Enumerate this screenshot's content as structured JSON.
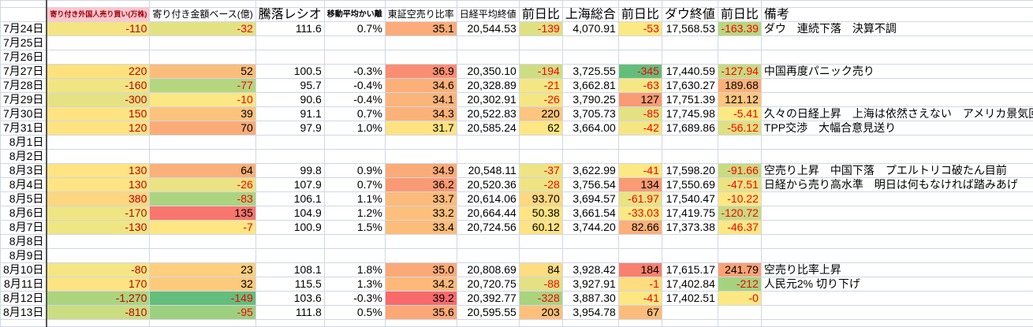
{
  "headers": [
    "",
    "寄り付き外国人売り買い(万株)",
    "寄り付き金額ベース(億)",
    "騰落レシオ",
    "移動平均かい離",
    "東証空売り比率",
    "日経平均終値",
    "前日比",
    "上海総合",
    "前日比",
    "ダウ終値",
    "前日比",
    "備考"
  ],
  "colors": {
    "negative_text": "#ff0000",
    "foreign_flow_text": "#c00000",
    "header_highlight": "#ffc7ce",
    "gridline": "#d0d7e5"
  },
  "rows": [
    {
      "date": "7月24日",
      "values": [
        "-110",
        "-32",
        "111.6",
        "0.7%",
        "35.1",
        "20,544.53",
        "-139",
        "4,070.91",
        "-53",
        "17,568.53",
        "-163.39"
      ],
      "fills": [
        "#f4e484",
        "#e3e283",
        "",
        "",
        "#fbac78",
        "",
        "#dfe082",
        "",
        "#fbe983",
        "",
        "#b8d77f"
      ],
      "remark": "ダウ　連続下落　決算不調"
    },
    {
      "date": "7月25日",
      "values": [
        "",
        "",
        "",
        "",
        "",
        "",
        "",
        "",
        "",
        "",
        ""
      ],
      "fills": [],
      "remark": ""
    },
    {
      "date": "7月26日",
      "values": [
        "",
        "",
        "",
        "",
        "",
        "",
        "",
        "",
        "",
        "",
        ""
      ],
      "fills": [],
      "remark": ""
    },
    {
      "date": "7月27日",
      "values": [
        "220",
        "52",
        "100.5",
        "-0.3%",
        "36.9",
        "20,350.10",
        "-194",
        "3,725.55",
        "-345",
        "17,440.59",
        "-127.94"
      ],
      "fills": [
        "#fee17f",
        "#fcbc7b",
        "",
        "",
        "#f98e72",
        "",
        "#cfdd82",
        "",
        "#63be7b",
        "",
        "#c6da81"
      ],
      "remark": "中国再度パニック売り"
    },
    {
      "date": "7月28日",
      "values": [
        "-160",
        "-77",
        "95.7",
        "-0.4%",
        "34.6",
        "20,328.89",
        "-21",
        "3,662.81",
        "-63",
        "17,630.27",
        "189.68"
      ],
      "fills": [
        "#f1e583",
        "#b4d680",
        "",
        "",
        "#fbb079",
        "",
        "#f4e684",
        "",
        "#f5e784",
        "",
        "#fbb079"
      ],
      "remark": ""
    },
    {
      "date": "7月29日",
      "values": [
        "-300",
        "-10",
        "90.6",
        "-0.4%",
        "34.1",
        "20,302.91",
        "-26",
        "3,790.25",
        "127",
        "17,751.39",
        "121.12"
      ],
      "fills": [
        "#e5e283",
        "#fbe883",
        "",
        "",
        "#fbb479",
        "",
        "#f3e683",
        "",
        "#f99b74",
        "",
        "#fdc57d"
      ],
      "remark": ""
    },
    {
      "date": "7月30日",
      "values": [
        "150",
        "39",
        "91.1",
        "0.7%",
        "34.3",
        "20,522.83",
        "220",
        "3,705.73",
        "-85",
        "17,745.98",
        "-5.41"
      ],
      "fills": [
        "#fee382",
        "#fcc37c",
        "",
        "",
        "#fbb279",
        "",
        "#fdc57d",
        "",
        "#e3e182",
        "",
        "#fbe983"
      ],
      "remark": "久々の日経上昇　上海は依然さえない　アメリカ景気回復の"
    },
    {
      "date": "7月31日",
      "values": [
        "120",
        "70",
        "97.9",
        "1.0%",
        "31.7",
        "20,585.24",
        "62",
        "3,664.00",
        "-42",
        "17,689.86",
        "-56.12"
      ],
      "fills": [
        "#fee382",
        "#fbab78",
        "",
        "",
        "#fee382",
        "",
        "#fde782",
        "",
        "#f5e683",
        "",
        "#dfe082"
      ],
      "remark": "TPP交渉　大幅合意見送り"
    },
    {
      "date": "8月1日",
      "values": [
        "",
        "",
        "",
        "",
        "",
        "",
        "",
        "",
        "",
        "",
        ""
      ],
      "fills": [],
      "remark": ""
    },
    {
      "date": "8月2日",
      "values": [
        "",
        "",
        "",
        "",
        "",
        "",
        "",
        "",
        "",
        "",
        ""
      ],
      "fills": [],
      "remark": ""
    },
    {
      "date": "8月3日",
      "values": [
        "130",
        "64",
        "99.8",
        "0.9%",
        "34.9",
        "20,548.11",
        "-37",
        "3,622.99",
        "-41",
        "17,598.20",
        "-91.66"
      ],
      "fills": [
        "#fee483",
        "#fbb079",
        "",
        "",
        "#fbab78",
        "",
        "#eee483",
        "",
        "#fbe983",
        "",
        "#c9db81"
      ],
      "remark": "空売り上昇　中国下落　プエルトリコ破たん目前"
    },
    {
      "date": "8月4日",
      "values": [
        "130",
        "-26",
        "107.9",
        "0.7%",
        "36.2",
        "20,520.36",
        "-28",
        "3,756.54",
        "134",
        "17,550.69",
        "-47.51"
      ],
      "fills": [
        "#fee483",
        "#ebe383",
        "",
        "",
        "#fa9a74",
        "",
        "#eee483",
        "",
        "#f99b74",
        "",
        "#e9e382"
      ],
      "remark": "日経から売り高水準　明日は何もなければ踏みあげ"
    },
    {
      "date": "8月5日",
      "values": [
        "380",
        "-83",
        "106.1",
        "1.1%",
        "33.7",
        "20,614.06",
        "93.70",
        "3,694.57",
        "-61.97",
        "17,540.47",
        "-10.22"
      ],
      "fills": [
        "#fdd680",
        "#acd47f",
        "",
        "",
        "#fcbb7b",
        "",
        "#fed880",
        "",
        "#eae382",
        "",
        "#fbe883"
      ],
      "remark": ""
    },
    {
      "date": "8月6日",
      "values": [
        "-170",
        "135",
        "104.9",
        "1.2%",
        "33.2",
        "20,664.44",
        "50.38",
        "3,661.54",
        "-33.03",
        "17,419.75",
        "-120.72"
      ],
      "fills": [
        "#efe583",
        "#f8766d",
        "",
        "",
        "#fcc07c",
        "",
        "#fee582",
        "",
        "#fbe983",
        "",
        "#c8db81"
      ],
      "remark": ""
    },
    {
      "date": "8月7日",
      "values": [
        "-130",
        "-7",
        "100.9",
        "1.5%",
        "33.4",
        "20,724.56",
        "60.12",
        "3,744.20",
        "82.66",
        "17,373.38",
        "-46.37"
      ],
      "fills": [
        "#f0e583",
        "#fee683",
        "",
        "",
        "#fcbd7b",
        "",
        "#fee382",
        "",
        "#fbb079",
        "",
        "#fbe883"
      ],
      "remark": ""
    },
    {
      "date": "8月8日",
      "values": [
        "",
        "",
        "",
        "",
        "",
        "",
        "",
        "",
        "",
        "",
        ""
      ],
      "fills": [],
      "remark": ""
    },
    {
      "date": "8月9日",
      "values": [
        "",
        "",
        "",
        "",
        "",
        "",
        "",
        "",
        "",
        "",
        ""
      ],
      "fills": [],
      "remark": ""
    },
    {
      "date": "8月10日",
      "values": [
        "-80",
        "23",
        "108.1",
        "1.8%",
        "35.0",
        "20,808.69",
        "84",
        "3,928.42",
        "184",
        "17,615.17",
        "241.79"
      ],
      "fills": [
        "#f4e684",
        "#fdcf7e",
        "",
        "",
        "#fba977",
        "",
        "#fedc80",
        "",
        "#f8806f",
        "",
        "#faa276"
      ],
      "remark": "空売り比率上昇"
    },
    {
      "date": "8月11日",
      "values": [
        "170",
        "32",
        "115.5",
        "1.3%",
        "34.2",
        "20,720.75",
        "-88",
        "3,927.91",
        "-1",
        "17,402.84",
        "-212"
      ],
      "fills": [
        "#fee382",
        "#fdca7d",
        "",
        "",
        "#fcb97a",
        "",
        "#e3e183",
        "",
        "#fedc80",
        "",
        "#a5d27f"
      ],
      "remark": "人民元2% 切り下げ"
    },
    {
      "date": "8月12日",
      "values": [
        "-1,270",
        "-149",
        "103.6",
        "-0.3%",
        "39.2",
        "20,392.77",
        "-328",
        "3,887.30",
        "-41",
        "17,402.51",
        "-0"
      ],
      "fills": [
        "#acd47f",
        "#63be7b",
        "",
        "",
        "#f8696b",
        "",
        "#a9d37f",
        "",
        "#fce883",
        "",
        "#fce883"
      ],
      "remark": ""
    },
    {
      "date": "8月13日",
      "values": [
        "-810",
        "-95",
        "111.8",
        "0.5%",
        "35.6",
        "20,595.55",
        "203",
        "3,954.78",
        "67",
        "",
        ""
      ],
      "fills": [
        "#cbdc81",
        "#9dd07e",
        "",
        "",
        "#fba777",
        "",
        "#fcc07c",
        "",
        "#fcbc7b",
        "",
        ""
      ],
      "remark": ""
    }
  ]
}
